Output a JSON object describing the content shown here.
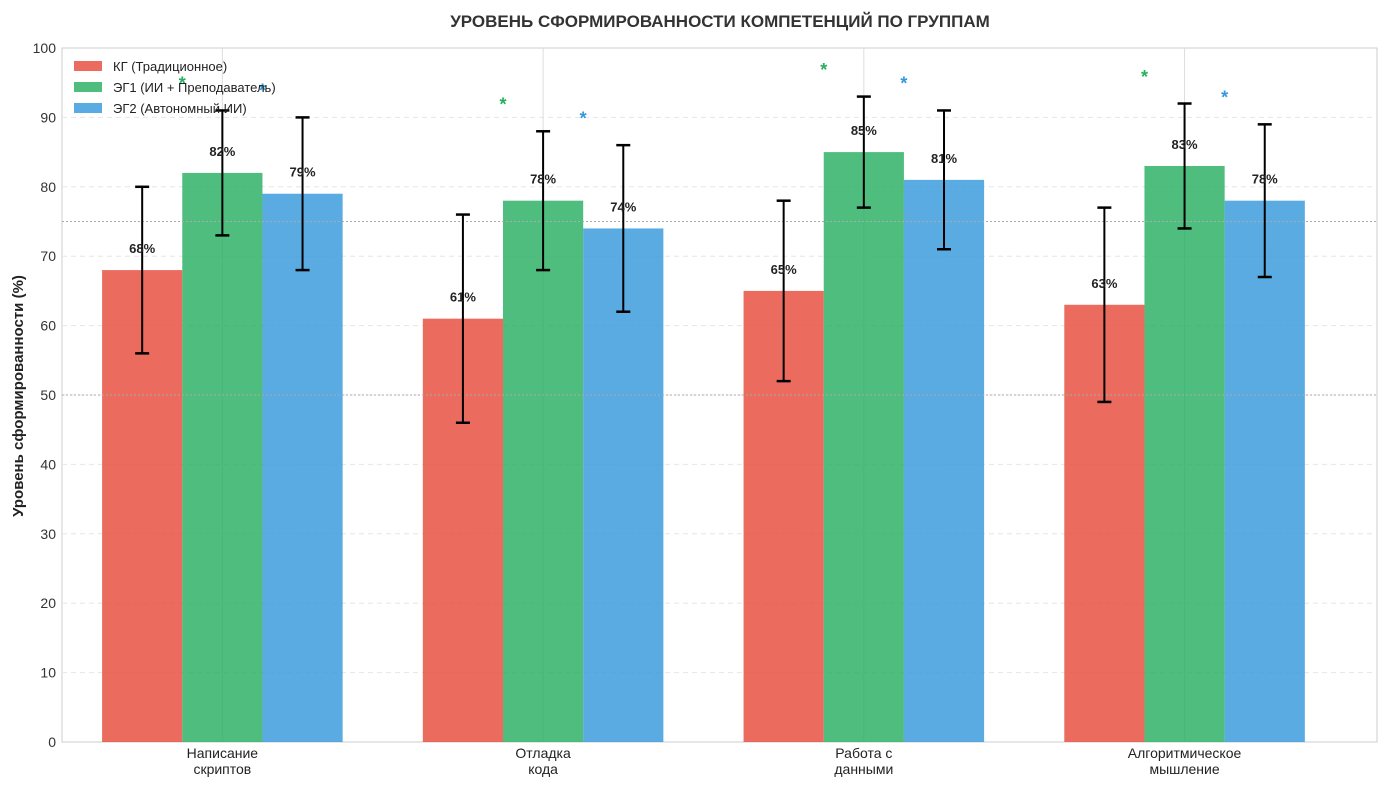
{
  "chart_data": {
    "type": "bar",
    "title": "УРОВЕНЬ СФОРМИРОВАННОСТИ КОМПЕТЕНЦИЙ ПО ГРУППАМ",
    "xlabel": "",
    "ylabel": "Уровень сформированности (%)",
    "ylim": [
      0,
      100
    ],
    "yticks": [
      "0",
      "10",
      "20",
      "30",
      "40",
      "50",
      "60",
      "70",
      "80",
      "90",
      "100"
    ],
    "grid": true,
    "legend_position": "top-left",
    "reference_lines": [
      50,
      75
    ],
    "categories": [
      [
        "Написание",
        "скриптов"
      ],
      [
        "Отладка",
        "кода"
      ],
      [
        "Работа с",
        "данными"
      ],
      [
        "Алгоритмическое",
        "мышление"
      ]
    ],
    "series": [
      {
        "name": "КГ (Традиционное)",
        "color": "#e74c3c",
        "values": [
          68,
          61,
          65,
          63
        ],
        "labels": [
          "68%",
          "61%",
          "65%",
          "63%"
        ],
        "error_low": [
          56,
          46,
          52,
          49
        ],
        "error_high": [
          80,
          76,
          78,
          77
        ]
      },
      {
        "name": "ЭГ1 (ИИ + Преподаватель)",
        "color": "#27ae60",
        "values": [
          82,
          78,
          85,
          83
        ],
        "labels": [
          "82%",
          "78%",
          "85%",
          "83%"
        ],
        "error_low": [
          73,
          68,
          77,
          74
        ],
        "error_high": [
          91,
          88,
          93,
          92
        ],
        "significance": [
          "*",
          "*",
          "*",
          "*"
        ],
        "significance_y": [
          95,
          92,
          97,
          96
        ]
      },
      {
        "name": "ЭГ2 (Автономный ИИ)",
        "color": "#3498db",
        "values": [
          79,
          74,
          81,
          78
        ],
        "labels": [
          "79%",
          "74%",
          "81%",
          "78%"
        ],
        "error_low": [
          68,
          62,
          71,
          67
        ],
        "error_high": [
          90,
          86,
          91,
          89
        ],
        "significance": [
          "*",
          "*",
          "*",
          "*"
        ],
        "significance_y": [
          94,
          90,
          95,
          93
        ]
      }
    ]
  }
}
